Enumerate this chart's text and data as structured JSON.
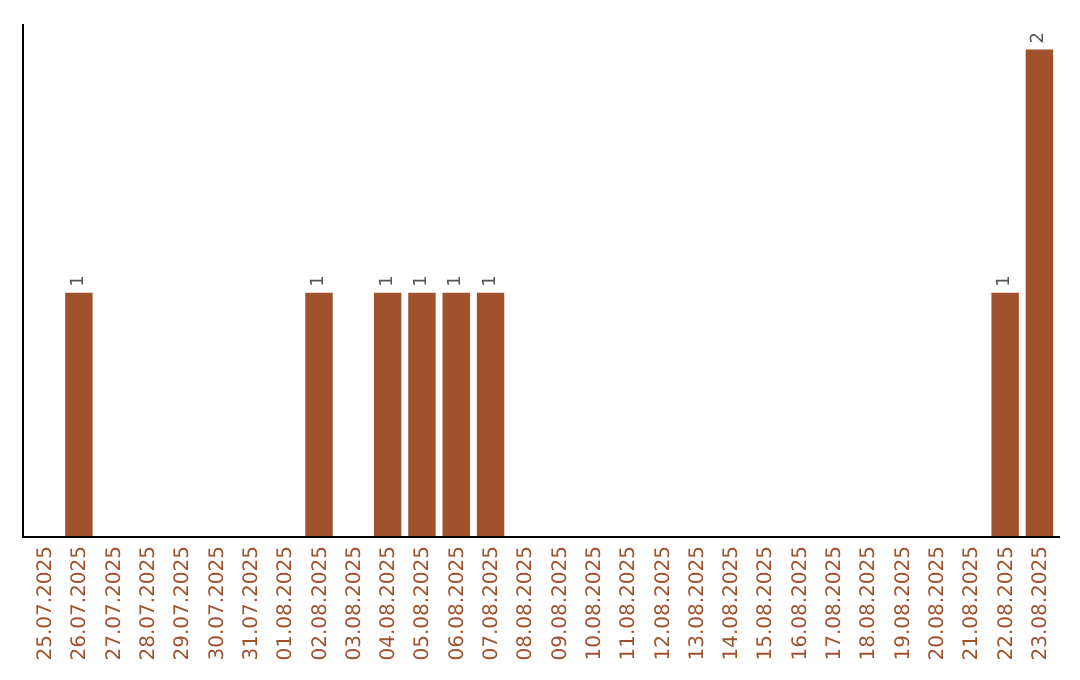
{
  "chart_data": {
    "type": "bar",
    "categories": [
      "25.07.2025",
      "26.07.2025",
      "27.07.2025",
      "28.07.2025",
      "29.07.2025",
      "30.07.2025",
      "31.07.2025",
      "01.08.2025",
      "02.08.2025",
      "03.08.2025",
      "04.08.2025",
      "05.08.2025",
      "06.08.2025",
      "07.08.2025",
      "08.08.2025",
      "09.08.2025",
      "10.08.2025",
      "11.08.2025",
      "12.08.2025",
      "13.08.2025",
      "14.08.2025",
      "15.08.2025",
      "16.08.2025",
      "17.08.2025",
      "18.08.2025",
      "19.08.2025",
      "20.08.2025",
      "21.08.2025",
      "22.08.2025",
      "23.08.2025"
    ],
    "values": [
      0,
      1,
      0,
      0,
      0,
      0,
      0,
      0,
      1,
      0,
      1,
      1,
      1,
      1,
      0,
      0,
      0,
      0,
      0,
      0,
      0,
      0,
      0,
      0,
      0,
      0,
      0,
      0,
      1,
      2
    ],
    "value_labels": [
      null,
      "1",
      null,
      null,
      null,
      null,
      null,
      null,
      "1",
      null,
      "1",
      "1",
      "1",
      "1",
      null,
      null,
      null,
      null,
      null,
      null,
      null,
      null,
      null,
      null,
      null,
      null,
      null,
      null,
      "1",
      "2"
    ],
    "color": "#a0522d"
  }
}
